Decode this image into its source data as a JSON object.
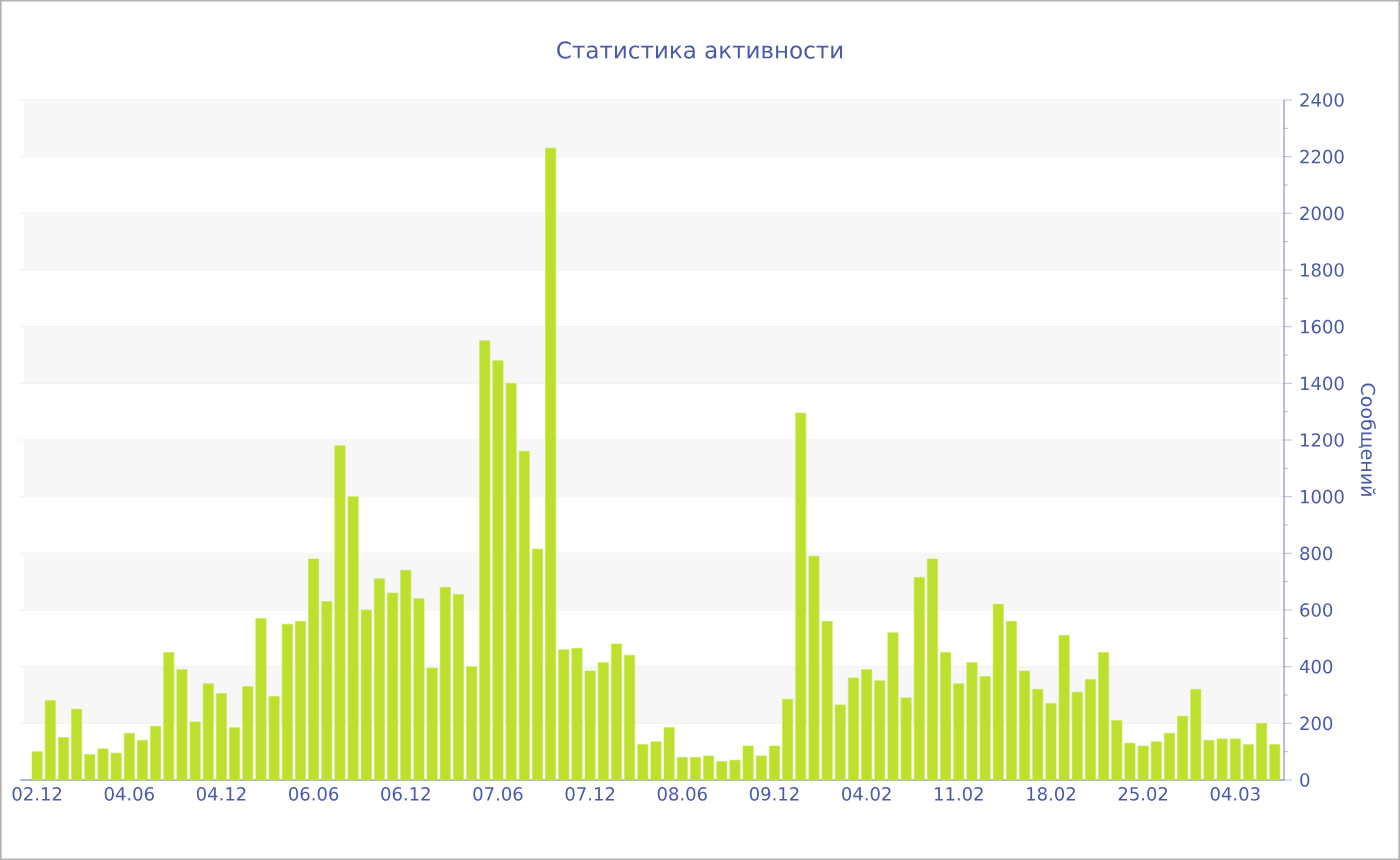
{
  "chart_data": {
    "type": "bar",
    "title": "Статистика активности",
    "ylabel": "Сообщений",
    "categories": [
      "02.12",
      null,
      null,
      null,
      null,
      null,
      null,
      "04.06",
      null,
      null,
      null,
      null,
      null,
      null,
      "04.12",
      null,
      null,
      null,
      null,
      null,
      null,
      "06.06",
      null,
      null,
      null,
      null,
      null,
      null,
      "06.12",
      null,
      null,
      null,
      null,
      null,
      null,
      "07.06",
      null,
      null,
      null,
      null,
      null,
      null,
      "07.12",
      null,
      null,
      null,
      null,
      null,
      null,
      "08.06",
      null,
      null,
      null,
      null,
      null,
      null,
      "09.12",
      null,
      null,
      null,
      null,
      null,
      null,
      "04.02",
      null,
      null,
      null,
      null,
      null,
      null,
      "11.02",
      null,
      null,
      null,
      null,
      null,
      null,
      "18.02",
      null,
      null,
      null,
      null,
      null,
      null,
      "25.02",
      null,
      null,
      null,
      null,
      null,
      null,
      "04.03",
      null,
      null,
      null
    ],
    "values": [
      100,
      280,
      150,
      250,
      90,
      110,
      95,
      165,
      140,
      190,
      450,
      390,
      205,
      340,
      305,
      185,
      330,
      570,
      295,
      550,
      560,
      780,
      630,
      1180,
      1000,
      600,
      710,
      660,
      740,
      640,
      395,
      680,
      655,
      400,
      1550,
      1480,
      1400,
      1160,
      815,
      2230,
      460,
      465,
      385,
      415,
      480,
      440,
      125,
      135,
      185,
      80,
      80,
      85,
      65,
      70,
      120,
      85,
      120,
      285,
      1295,
      790,
      560,
      265,
      360,
      390,
      350,
      520,
      290,
      715,
      780,
      450,
      340,
      415,
      365,
      620,
      560,
      385,
      320,
      270,
      510,
      310,
      355,
      450,
      210,
      130,
      120,
      135,
      165,
      225,
      320,
      140,
      145,
      145,
      125,
      200,
      125
    ],
    "color": "#bde02e",
    "ylim": [
      0,
      2400
    ],
    "yticks": [
      0,
      200,
      400,
      600,
      800,
      1000,
      1200,
      1400,
      1600,
      1800,
      2000,
      2200,
      2400
    ],
    "grid": "y"
  }
}
